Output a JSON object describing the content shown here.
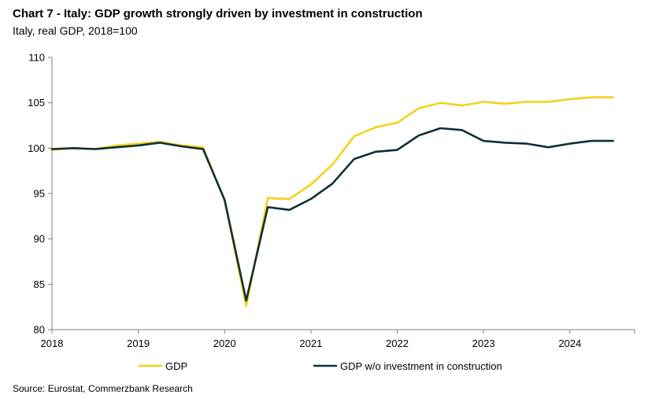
{
  "chart_data": {
    "type": "line",
    "title": "Chart 7 - Italy: GDP growth strongly driven by investment in construction",
    "subtitle": "Italy, real GDP, 2018=100",
    "source": "Source: Eurostat, Commerzbank Research",
    "x_tick_labels": [
      "2018",
      "2019",
      "2020",
      "2021",
      "2022",
      "2023",
      "2024"
    ],
    "x_tick_values": [
      2018,
      2019,
      2020,
      2021,
      2022,
      2023,
      2024
    ],
    "xlim": [
      2018,
      2024.75
    ],
    "y_tick_labels": [
      "80",
      "85",
      "90",
      "95",
      "100",
      "105",
      "110"
    ],
    "y_tick_values": [
      80,
      85,
      90,
      95,
      100,
      105,
      110
    ],
    "ylim": [
      80,
      110
    ],
    "x": [
      2018.0,
      2018.25,
      2018.5,
      2018.75,
      2019.0,
      2019.25,
      2019.5,
      2019.75,
      2020.0,
      2020.25,
      2020.5,
      2020.75,
      2021.0,
      2021.25,
      2021.5,
      2021.75,
      2022.0,
      2022.25,
      2022.5,
      2022.75,
      2023.0,
      2023.25,
      2023.5,
      2023.75,
      2024.0,
      2024.25,
      2024.5
    ],
    "series": [
      {
        "name": "GDP",
        "color": "#F2D21C",
        "values": [
          99.8,
          100.0,
          99.9,
          100.3,
          100.5,
          100.7,
          100.3,
          100.1,
          94.2,
          82.6,
          94.5,
          94.4,
          96.0,
          98.2,
          101.3,
          102.3,
          102.8,
          104.4,
          105.0,
          104.7,
          105.1,
          104.9,
          105.1,
          105.1,
          105.4,
          105.6,
          105.6
        ]
      },
      {
        "name": "GDP w/o investment in construction",
        "color": "#0F2F35",
        "values": [
          99.9,
          100.0,
          99.9,
          100.1,
          100.3,
          100.6,
          100.2,
          99.9,
          94.3,
          83.2,
          93.5,
          93.2,
          94.4,
          96.1,
          98.8,
          99.6,
          99.8,
          101.4,
          102.2,
          102.0,
          100.8,
          100.6,
          100.5,
          100.1,
          100.5,
          100.8,
          100.8
        ]
      }
    ],
    "legend_position": "bottom",
    "grid": false
  }
}
